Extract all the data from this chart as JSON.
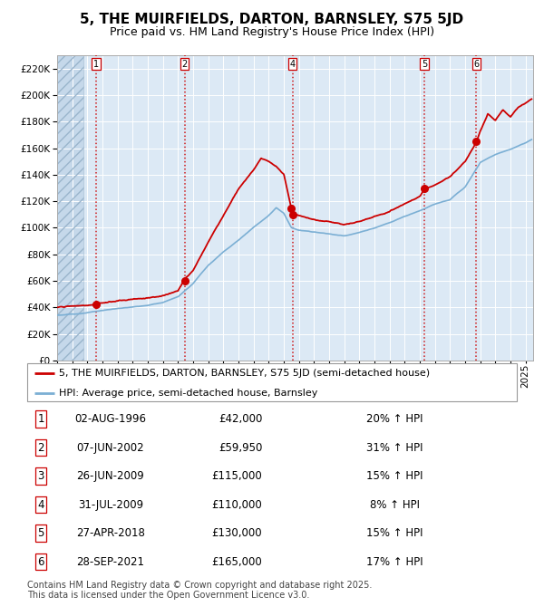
{
  "title": "5, THE MUIRFIELDS, DARTON, BARNSLEY, S75 5JD",
  "subtitle": "Price paid vs. HM Land Registry's House Price Index (HPI)",
  "ylim": [
    0,
    230000
  ],
  "yticks": [
    0,
    20000,
    40000,
    60000,
    80000,
    100000,
    120000,
    140000,
    160000,
    180000,
    200000,
    220000
  ],
  "xlim_start": 1994.0,
  "xlim_end": 2025.5,
  "background_color": "#ffffff",
  "plot_bg_color": "#dce9f5",
  "grid_color": "#ffffff",
  "legend_label_red": "5, THE MUIRFIELDS, DARTON, BARNSLEY, S75 5JD (semi-detached house)",
  "legend_label_blue": "HPI: Average price, semi-detached house, Barnsley",
  "footnote": "Contains HM Land Registry data © Crown copyright and database right 2025.\nThis data is licensed under the Open Government Licence v3.0.",
  "transactions": [
    {
      "num": 1,
      "date": 1996.58,
      "price": 42000
    },
    {
      "num": 2,
      "date": 2002.43,
      "price": 59950
    },
    {
      "num": 3,
      "date": 2009.48,
      "price": 115000
    },
    {
      "num": 4,
      "date": 2009.58,
      "price": 110000
    },
    {
      "num": 5,
      "date": 2018.32,
      "price": 130000
    },
    {
      "num": 6,
      "date": 2021.74,
      "price": 165000
    }
  ],
  "vline_nums": [
    1,
    2,
    4,
    5,
    6
  ],
  "table_rows": [
    {
      "num": 1,
      "date": "02-AUG-1996",
      "price": "£42,000",
      "pct": "20% ↑ HPI"
    },
    {
      "num": 2,
      "date": "07-JUN-2002",
      "price": "£59,950",
      "pct": "31% ↑ HPI"
    },
    {
      "num": 3,
      "date": "26-JUN-2009",
      "price": "£115,000",
      "pct": "15% ↑ HPI"
    },
    {
      "num": 4,
      "date": "31-JUL-2009",
      "price": "£110,000",
      "pct": "8% ↑ HPI"
    },
    {
      "num": 5,
      "date": "27-APR-2018",
      "price": "£130,000",
      "pct": "15% ↑ HPI"
    },
    {
      "num": 6,
      "date": "28-SEP-2021",
      "price": "£165,000",
      "pct": "17% ↑ HPI"
    }
  ],
  "red_color": "#cc0000",
  "blue_color": "#7bafd4",
  "marker_color": "#cc0000",
  "vline_color": "#cc0000",
  "title_fontsize": 11,
  "subtitle_fontsize": 9,
  "tick_fontsize": 7.5,
  "legend_fontsize": 8,
  "table_fontsize": 8.5,
  "footnote_fontsize": 7
}
